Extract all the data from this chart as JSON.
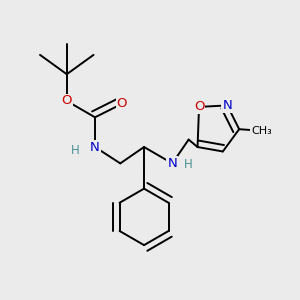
{
  "background_color": "#ebebeb",
  "atom_colors": {
    "C": "#000000",
    "N": "#0000cc",
    "O": "#cc0000",
    "H_n": "#4a9090",
    "H": "#555555"
  },
  "bond_color": "#000000",
  "bond_width": 1.4,
  "figsize": [
    3.0,
    3.0
  ],
  "dpi": 100
}
